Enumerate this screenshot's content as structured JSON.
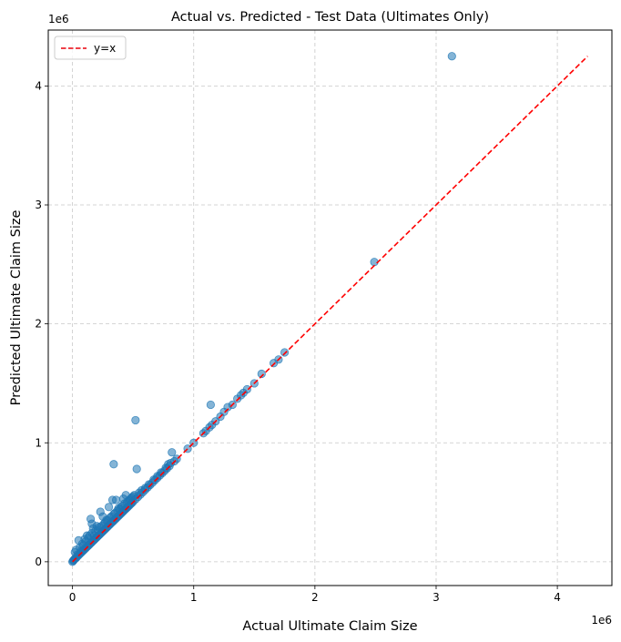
{
  "chart_data": {
    "type": "scatter",
    "title": "Actual vs. Predicted - Test Data (Ultimates Only)",
    "xlabel": "Actual Ultimate Claim Size",
    "ylabel": "Predicted Ultimate Claim Size",
    "x_offset_label": "1e6",
    "y_offset_label": "1e6",
    "xlim": [
      -0.2,
      4.45
    ],
    "ylim": [
      -0.2,
      4.47
    ],
    "xticks": [
      0,
      1,
      2,
      3,
      4
    ],
    "yticks": [
      0,
      1,
      2,
      3,
      4
    ],
    "xtick_labels": [
      "0",
      "1",
      "2",
      "3",
      "4"
    ],
    "ytick_labels": [
      "0",
      "1",
      "2",
      "3",
      "4"
    ],
    "grid": true,
    "legend_position": "upper-left",
    "legend": [
      {
        "label": "y=x",
        "style": "dashed",
        "color": "#e8000b"
      }
    ],
    "reference_line": {
      "label": "y=x",
      "from": [
        0,
        0
      ],
      "to": [
        4.25,
        4.25
      ],
      "color": "#ff0000"
    },
    "series": [
      {
        "color": "#1f77b4",
        "points": [
          [
            0.0,
            0.0
          ],
          [
            0.005,
            0.008
          ],
          [
            0.01,
            0.012
          ],
          [
            0.015,
            0.02
          ],
          [
            0.02,
            0.025
          ],
          [
            0.03,
            0.032
          ],
          [
            0.04,
            0.045
          ],
          [
            0.05,
            0.055
          ],
          [
            0.06,
            0.065
          ],
          [
            0.07,
            0.075
          ],
          [
            0.08,
            0.085
          ],
          [
            0.09,
            0.095
          ],
          [
            0.1,
            0.105
          ],
          [
            0.11,
            0.115
          ],
          [
            0.12,
            0.125
          ],
          [
            0.13,
            0.135
          ],
          [
            0.14,
            0.145
          ],
          [
            0.15,
            0.155
          ],
          [
            0.16,
            0.165
          ],
          [
            0.17,
            0.175
          ],
          [
            0.18,
            0.185
          ],
          [
            0.19,
            0.195
          ],
          [
            0.2,
            0.205
          ],
          [
            0.21,
            0.215
          ],
          [
            0.22,
            0.225
          ],
          [
            0.23,
            0.235
          ],
          [
            0.24,
            0.245
          ],
          [
            0.25,
            0.255
          ],
          [
            0.26,
            0.265
          ],
          [
            0.27,
            0.275
          ],
          [
            0.28,
            0.285
          ],
          [
            0.29,
            0.295
          ],
          [
            0.3,
            0.305
          ],
          [
            0.31,
            0.315
          ],
          [
            0.32,
            0.325
          ],
          [
            0.33,
            0.335
          ],
          [
            0.34,
            0.345
          ],
          [
            0.35,
            0.355
          ],
          [
            0.36,
            0.365
          ],
          [
            0.37,
            0.375
          ],
          [
            0.38,
            0.385
          ],
          [
            0.39,
            0.395
          ],
          [
            0.4,
            0.405
          ],
          [
            0.41,
            0.415
          ],
          [
            0.42,
            0.425
          ],
          [
            0.43,
            0.435
          ],
          [
            0.44,
            0.445
          ],
          [
            0.45,
            0.455
          ],
          [
            0.46,
            0.465
          ],
          [
            0.47,
            0.475
          ],
          [
            0.48,
            0.485
          ],
          [
            0.49,
            0.495
          ],
          [
            0.5,
            0.505
          ],
          [
            0.52,
            0.525
          ],
          [
            0.54,
            0.545
          ],
          [
            0.56,
            0.565
          ],
          [
            0.58,
            0.585
          ],
          [
            0.6,
            0.605
          ],
          [
            0.62,
            0.625
          ],
          [
            0.64,
            0.645
          ],
          [
            0.66,
            0.665
          ],
          [
            0.68,
            0.685
          ],
          [
            0.7,
            0.705
          ],
          [
            0.72,
            0.725
          ],
          [
            0.74,
            0.745
          ],
          [
            0.76,
            0.765
          ],
          [
            0.78,
            0.785
          ],
          [
            0.8,
            0.805
          ],
          [
            0.84,
            0.845
          ],
          [
            0.86,
            0.865
          ],
          [
            0.95,
            0.95
          ],
          [
            1.0,
            1.0
          ],
          [
            1.08,
            1.08
          ],
          [
            1.1,
            1.1
          ],
          [
            1.13,
            1.13
          ],
          [
            1.15,
            1.15
          ],
          [
            1.18,
            1.18
          ],
          [
            1.22,
            1.22
          ],
          [
            1.25,
            1.26
          ],
          [
            1.28,
            1.3
          ],
          [
            1.32,
            1.32
          ],
          [
            1.36,
            1.37
          ],
          [
            1.39,
            1.4
          ],
          [
            1.41,
            1.42
          ],
          [
            1.44,
            1.45
          ],
          [
            1.5,
            1.5
          ],
          [
            1.56,
            1.58
          ],
          [
            1.66,
            1.67
          ],
          [
            1.7,
            1.7
          ],
          [
            1.75,
            1.76
          ],
          [
            2.49,
            2.52
          ],
          [
            3.13,
            4.25
          ],
          [
            0.52,
            1.19
          ],
          [
            0.34,
            0.82
          ],
          [
            0.53,
            0.78
          ],
          [
            1.14,
            1.32
          ],
          [
            0.82,
            0.92
          ],
          [
            0.05,
            0.18
          ],
          [
            0.1,
            0.19
          ],
          [
            0.15,
            0.36
          ],
          [
            0.16,
            0.32
          ],
          [
            0.17,
            0.28
          ],
          [
            0.23,
            0.42
          ],
          [
            0.33,
            0.52
          ],
          [
            0.3,
            0.46
          ],
          [
            0.42,
            0.53
          ],
          [
            0.44,
            0.56
          ],
          [
            0.36,
            0.52
          ],
          [
            0.28,
            0.35
          ],
          [
            0.12,
            0.22
          ],
          [
            0.08,
            0.15
          ],
          [
            0.2,
            0.3
          ],
          [
            0.25,
            0.38
          ],
          [
            0.38,
            0.45
          ],
          [
            0.45,
            0.5
          ],
          [
            0.5,
            0.55
          ],
          [
            0.55,
            0.58
          ],
          [
            0.6,
            0.62
          ],
          [
            0.02,
            0.08
          ],
          [
            0.03,
            0.1
          ],
          [
            0.04,
            0.06
          ],
          [
            0.06,
            0.12
          ],
          [
            0.07,
            0.09
          ],
          [
            0.09,
            0.14
          ],
          [
            0.11,
            0.17
          ],
          [
            0.13,
            0.2
          ],
          [
            0.14,
            0.22
          ],
          [
            0.16,
            0.24
          ],
          [
            0.18,
            0.22
          ],
          [
            0.19,
            0.26
          ],
          [
            0.21,
            0.27
          ],
          [
            0.22,
            0.29
          ],
          [
            0.24,
            0.3
          ],
          [
            0.26,
            0.32
          ],
          [
            0.27,
            0.33
          ],
          [
            0.29,
            0.35
          ],
          [
            0.31,
            0.37
          ],
          [
            0.32,
            0.38
          ],
          [
            0.34,
            0.4
          ],
          [
            0.35,
            0.41
          ],
          [
            0.37,
            0.43
          ],
          [
            0.39,
            0.44
          ],
          [
            0.4,
            0.46
          ],
          [
            0.41,
            0.47
          ],
          [
            0.43,
            0.49
          ],
          [
            0.46,
            0.51
          ],
          [
            0.47,
            0.52
          ],
          [
            0.48,
            0.53
          ],
          [
            0.49,
            0.54
          ],
          [
            0.51,
            0.56
          ],
          [
            0.57,
            0.6
          ],
          [
            0.63,
            0.65
          ],
          [
            0.67,
            0.69
          ],
          [
            0.7,
            0.72
          ],
          [
            0.73,
            0.75
          ],
          [
            0.77,
            0.79
          ],
          [
            0.79,
            0.82
          ],
          [
            0.81,
            0.83
          ]
        ]
      }
    ]
  }
}
